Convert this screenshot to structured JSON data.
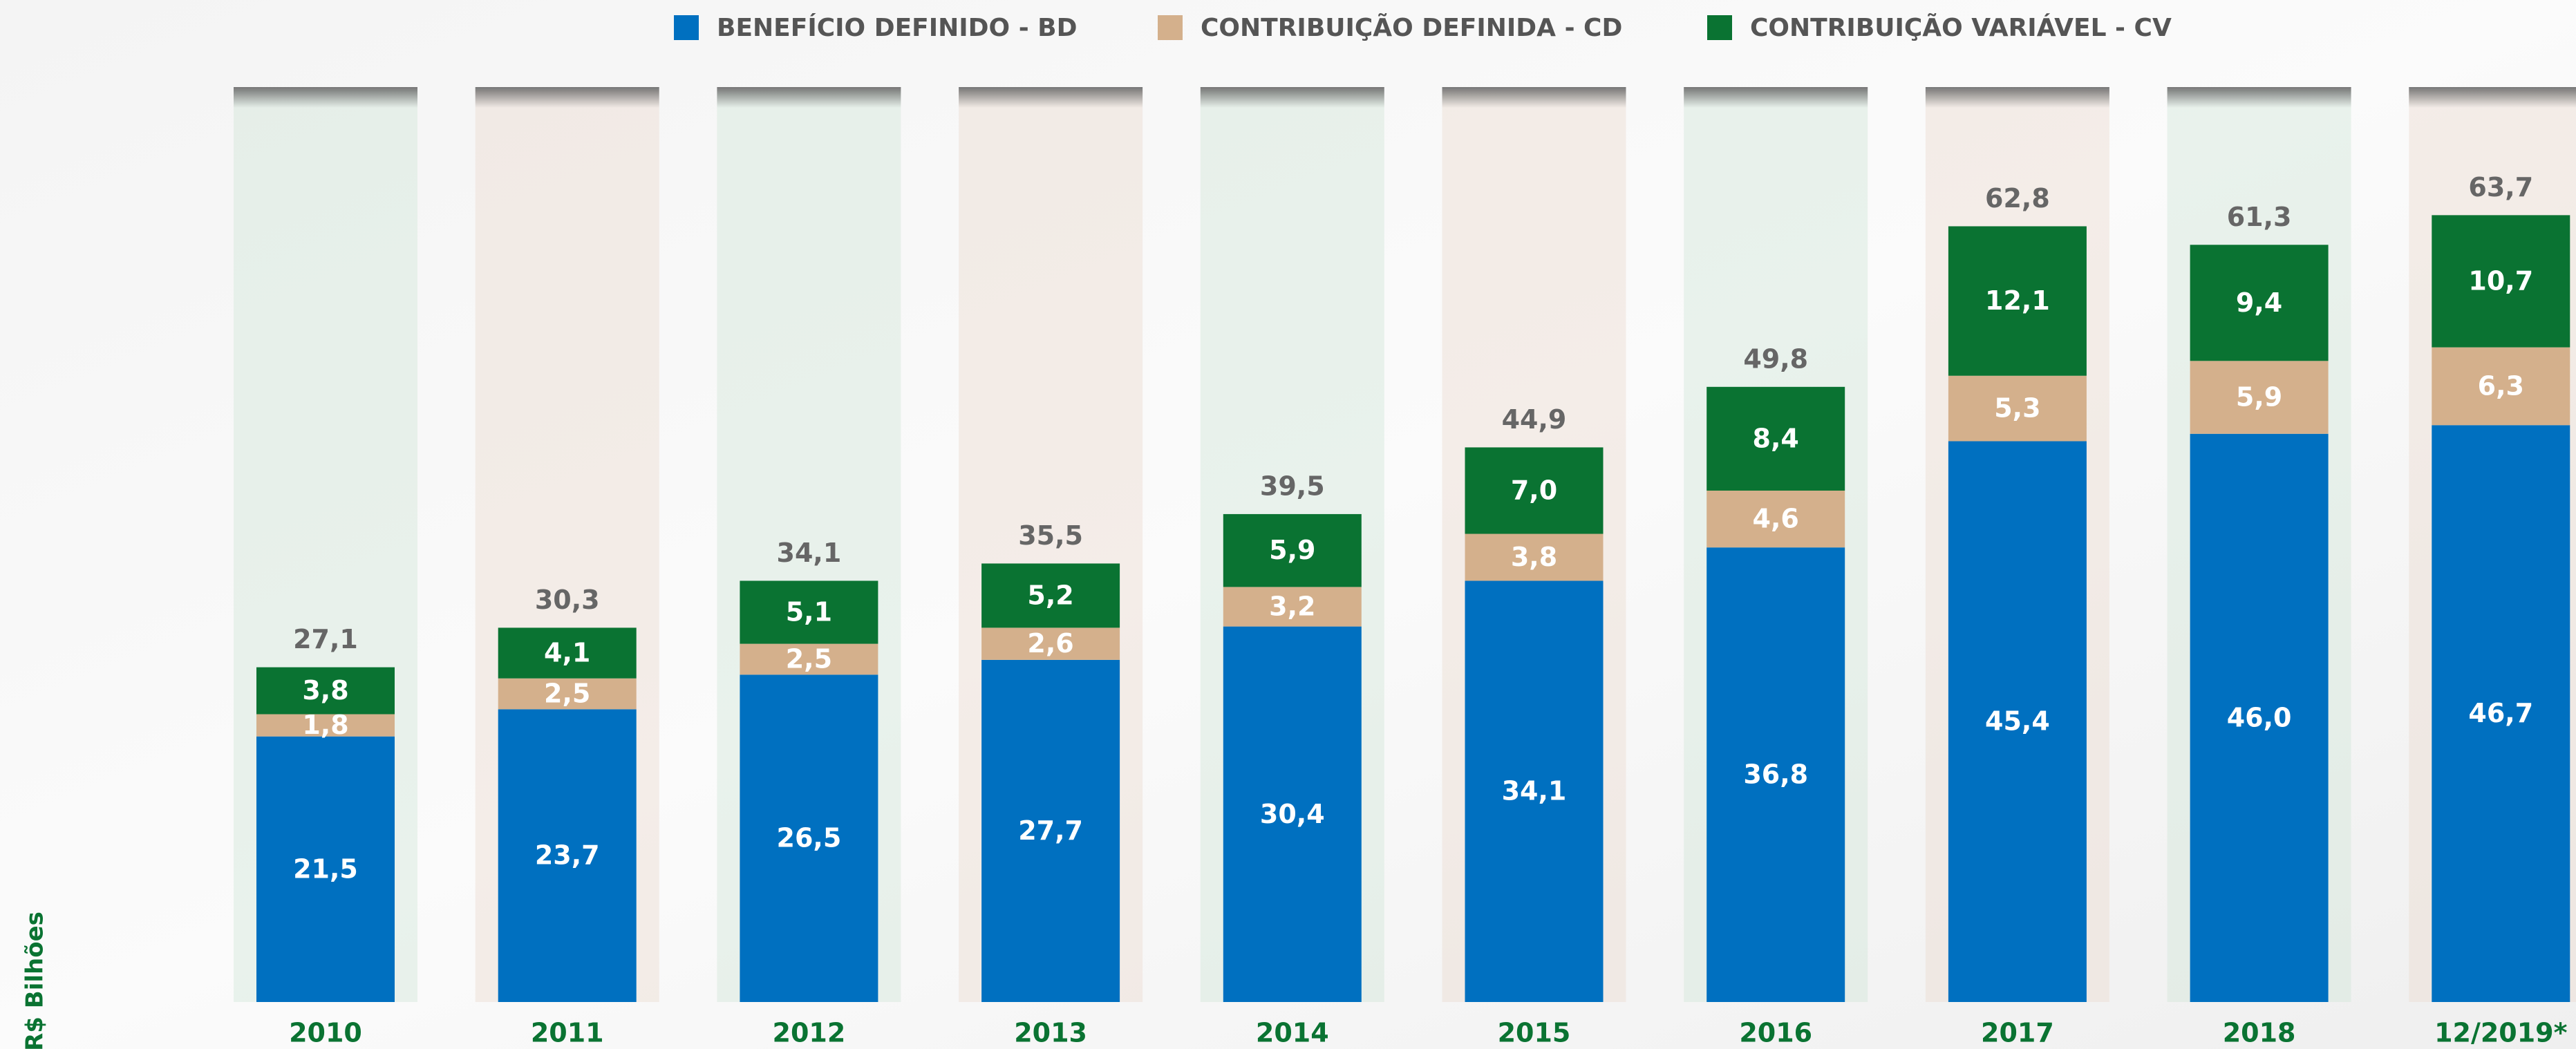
{
  "chart_data": {
    "type": "stacked_bar",
    "categories": [
      "2010",
      "2011",
      "2012",
      "2013",
      "2014",
      "2015",
      "2016",
      "2017",
      "2018",
      "12/2019*"
    ],
    "series": [
      {
        "name": "BENEFÍCIO DEFINIDO - BD",
        "color": "#0070c0",
        "values": [
          21.5,
          23.7,
          26.5,
          27.7,
          30.4,
          34.1,
          36.8,
          45.4,
          46.0,
          46.7
        ],
        "value_labels": [
          "21,5",
          "23,7",
          "26,5",
          "27,7",
          "30,4",
          "34,1",
          "36,8",
          "45,4",
          "46,0",
          "46,7"
        ]
      },
      {
        "name": "CONTRIBUIÇÃO DEFINIDA - CD",
        "color": "#d4b08c",
        "values": [
          1.8,
          2.5,
          2.5,
          2.6,
          3.2,
          3.8,
          4.6,
          5.3,
          5.9,
          6.3
        ],
        "value_labels": [
          "1,8",
          "2,5",
          "2,5",
          "2,6",
          "3,2",
          "3,8",
          "4,6",
          "5,3",
          "5,9",
          "6,3"
        ]
      },
      {
        "name": "CONTRIBUIÇÃO VARIÁVEL - CV",
        "color": "#0a7332",
        "values": [
          3.8,
          4.1,
          5.1,
          5.2,
          5.9,
          7.0,
          8.4,
          12.1,
          9.4,
          10.7
        ],
        "value_labels": [
          "3,8",
          "4,1",
          "5,1",
          "5,2",
          "5,9",
          "7,0",
          "8,4",
          "12,1",
          "9,4",
          "10,7"
        ]
      }
    ],
    "totals": [
      27.1,
      30.3,
      34.1,
      35.5,
      39.5,
      44.9,
      49.8,
      62.8,
      61.3,
      63.7
    ],
    "total_labels": [
      "27,1",
      "30,3",
      "34,1",
      "35,5",
      "39,5",
      "44,9",
      "49,8",
      "62,8",
      "61,3",
      "63,7"
    ],
    "y_axis_label": "R$ Bilhões",
    "ylim": [
      0,
      80
    ]
  }
}
